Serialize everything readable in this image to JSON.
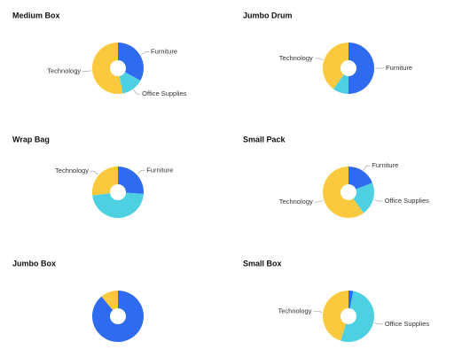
{
  "chart_data": [
    {
      "type": "pie",
      "title": "Medium Box",
      "categories": [
        "Furniture",
        "Office Supplies",
        "Technology"
      ],
      "values": [
        33,
        14,
        53
      ],
      "colors": [
        "#2f6bef",
        "#4dd0e1",
        "#fbc93d"
      ]
    },
    {
      "type": "pie",
      "title": "Jumbo Drum",
      "categories": [
        "Furniture",
        null,
        "Technology"
      ],
      "values": [
        50,
        10,
        40
      ],
      "colors": [
        "#2f6bef",
        "#4dd0e1",
        "#fbc93d"
      ]
    },
    {
      "type": "pie",
      "title": "Wrap Bag",
      "categories": [
        "Furniture",
        null,
        "Technology"
      ],
      "values": [
        26,
        47,
        27
      ],
      "colors": [
        "#2f6bef",
        "#4dd0e1",
        "#fbc93d"
      ]
    },
    {
      "type": "pie",
      "title": "Small Pack",
      "categories": [
        "Furniture",
        "Office Supplies",
        "Technology"
      ],
      "values": [
        19,
        21,
        60
      ],
      "colors": [
        "#2f6bef",
        "#4dd0e1",
        "#fbc93d"
      ]
    },
    {
      "type": "pie",
      "title": "Jumbo Box",
      "categories": [
        null,
        null,
        null
      ],
      "values": [
        89,
        0,
        11
      ],
      "colors": [
        "#2f6bef",
        "#4dd0e1",
        "#fbc93d"
      ]
    },
    {
      "type": "pie",
      "title": "Small Box",
      "categories": [
        null,
        "Office Supplies",
        "Technology"
      ],
      "values": [
        3,
        52,
        45
      ],
      "colors": [
        "#2f6bef",
        "#4dd0e1",
        "#fbc93d"
      ]
    }
  ]
}
